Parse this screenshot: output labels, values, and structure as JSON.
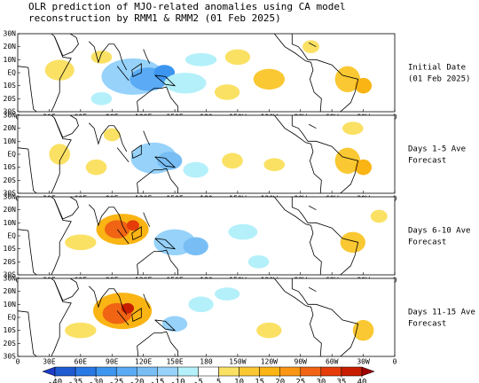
{
  "title": [
    "OLR prediction of MJO-related anomalies using CA model",
    "reconstruction by RMM1 & RMM2 (01 Feb 2025)"
  ],
  "panels": [
    {
      "label": [
        "Initial Date",
        "(01 Feb 2025)"
      ]
    },
    {
      "label": [
        "Days 1-5 Ave",
        "Forecast"
      ]
    },
    {
      "label": [
        "Days 6-10 Ave",
        "Forecast"
      ]
    },
    {
      "label": [
        "Days 11-15 Ave",
        "Forecast"
      ]
    }
  ],
  "lon_ticks": [
    "0",
    "30E",
    "60E",
    "90E",
    "120E",
    "150E",
    "180",
    "150W",
    "120W",
    "90W",
    "60W",
    "30W",
    "0"
  ],
  "lat_ticks": [
    "30N",
    "20N",
    "10N",
    "EQ",
    "10S",
    "20S",
    "30S"
  ],
  "colorbar": {
    "ticks": [
      -40,
      -35,
      -30,
      -25,
      -20,
      -15,
      -10,
      -5,
      5,
      10,
      15,
      20,
      25,
      30,
      35,
      40
    ],
    "colors": [
      "#1e3cc8",
      "#1e5ad2",
      "#2878e6",
      "#3c96f0",
      "#5aaaf5",
      "#78bef5",
      "#96d2fa",
      "#b4f0fa",
      "#ffffff",
      "#fae164",
      "#fac832",
      "#fab414",
      "#fa9614",
      "#f06414",
      "#e63c0a",
      "#c81e00",
      "#a00000"
    ]
  }
}
